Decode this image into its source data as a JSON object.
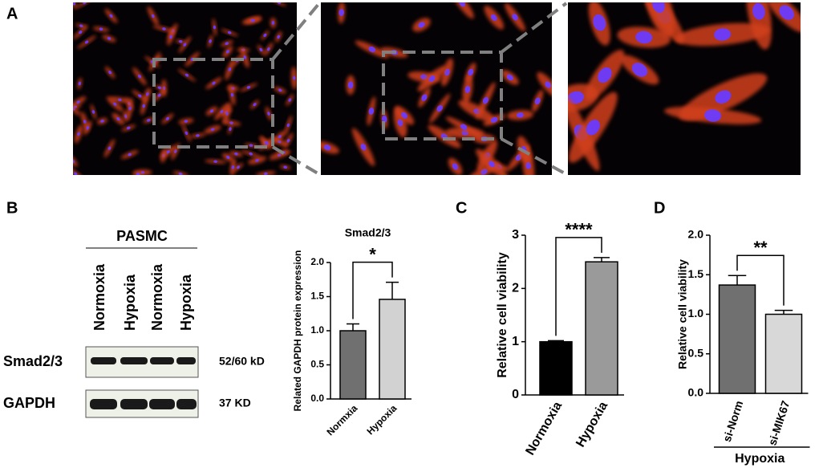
{
  "panels": [
    "A",
    "B",
    "C",
    "D"
  ],
  "blot": {
    "title": "PASMC",
    "lanes": [
      "Normoxia",
      "Hypoxia",
      "Normoxia",
      "Hypoxia"
    ],
    "rows": [
      {
        "label": "Smad2/3",
        "size": "52/60 kD"
      },
      {
        "label": "GAPDH",
        "size": "37 KD"
      }
    ]
  },
  "chart_data": [
    {
      "type": "bar",
      "title": "Smad2/3",
      "y_label": "Related GAPDH protein expression",
      "categories": [
        "Normxia",
        "Hypoxia"
      ],
      "values": [
        1.0,
        1.46
      ],
      "errors": [
        0.1,
        0.25
      ],
      "colors": [
        "#707070",
        "#d2d2d2"
      ],
      "ylim": [
        0,
        2
      ],
      "yticks": [
        {
          "value": 0,
          "label": "0.0"
        },
        0.5,
        {
          "value": 1,
          "label": "1.0"
        },
        1.5,
        {
          "value": 2,
          "label": "2.0"
        }
      ],
      "annotation": "*"
    },
    {
      "type": "bar",
      "y_label": "Relative cell viability",
      "categories": [
        "Normoxia",
        "Hypoxia"
      ],
      "values": [
        1.0,
        2.5
      ],
      "errors": [
        0.02,
        0.08
      ],
      "colors": [
        "#000000",
        "#9a9a9a"
      ],
      "ylim": [
        0,
        3
      ],
      "yticks": [
        0,
        1,
        2,
        3
      ],
      "annotation": "****"
    },
    {
      "type": "bar",
      "y_label": "Relative cell viability",
      "categories": [
        "si-Norm",
        "si-MIK67"
      ],
      "values": [
        1.37,
        1.0
      ],
      "errors": [
        0.12,
        0.05
      ],
      "colors": [
        "#707070",
        "#d8d8d8"
      ],
      "ylim": [
        0,
        2
      ],
      "yticks": [
        {
          "value": 0,
          "label": "0.0"
        },
        0.5,
        {
          "value": 1,
          "label": "1.0"
        },
        1.5,
        {
          "value": 2,
          "label": "2.0"
        }
      ],
      "annotation": "**",
      "group_label": "Hypoxia"
    }
  ]
}
